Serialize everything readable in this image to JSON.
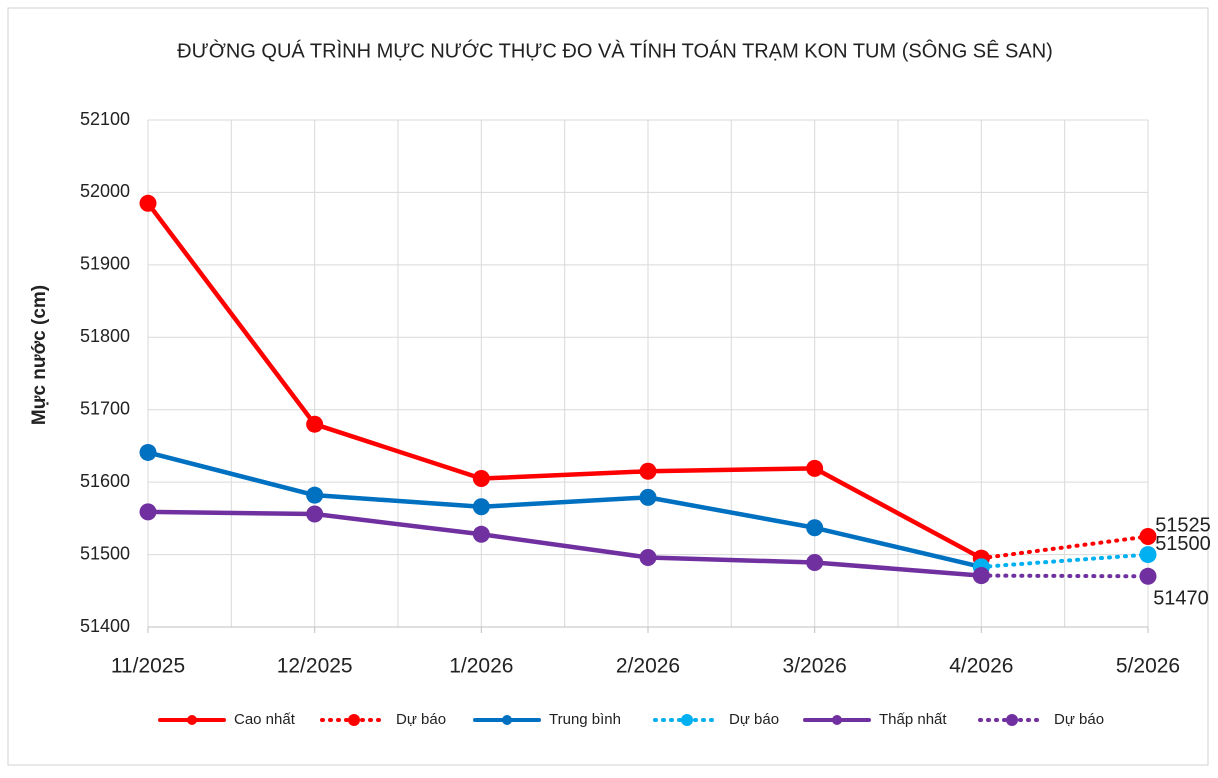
{
  "chart_data": {
    "type": "line",
    "title": "ĐƯỜNG QUÁ TRÌNH MỰC NƯỚC THỰC ĐO VÀ TÍNH TOÁN TRẠM KON TUM (SÔNG SÊ SAN)",
    "y_label": "Mực nước (cm)",
    "categories": [
      "11/2025",
      "12/2025",
      "1/2026",
      "2/2026",
      "3/2026",
      "4/2026",
      "5/2026"
    ],
    "series": [
      {
        "name": "Cao nhất",
        "color": "#ff0000",
        "dash": "solid",
        "values": [
          51985,
          51680,
          51605,
          51615,
          51619,
          51495,
          null
        ]
      },
      {
        "name": "Dự báo",
        "color": "#ff0000",
        "dash": "dot",
        "data_labels": true,
        "values": [
          null,
          null,
          null,
          null,
          null,
          51495,
          51525
        ]
      },
      {
        "name": "Trung bình",
        "color": "#0070c0",
        "dash": "solid",
        "values": [
          51641,
          51582,
          51566,
          51579,
          51537,
          51483,
          null
        ]
      },
      {
        "name": "Dự báo",
        "color": "#00b0f0",
        "dash": "dot",
        "data_labels": true,
        "values": [
          null,
          null,
          null,
          null,
          null,
          51483,
          51500
        ]
      },
      {
        "name": "Thấp nhất",
        "color": "#7030a0",
        "dash": "solid",
        "values": [
          51559,
          51556,
          51528,
          51496,
          51489,
          51471,
          null
        ]
      },
      {
        "name": "Dự báo",
        "color": "#7030a0",
        "dash": "dot",
        "data_labels": true,
        "values": [
          null,
          null,
          null,
          null,
          null,
          51471,
          51470
        ]
      }
    ],
    "ylim": [
      51400,
      52100
    ],
    "yticks": [
      51400,
      51500,
      51600,
      51700,
      51800,
      51900,
      52000,
      52100
    ],
    "grid": true,
    "legend": "bottom"
  }
}
